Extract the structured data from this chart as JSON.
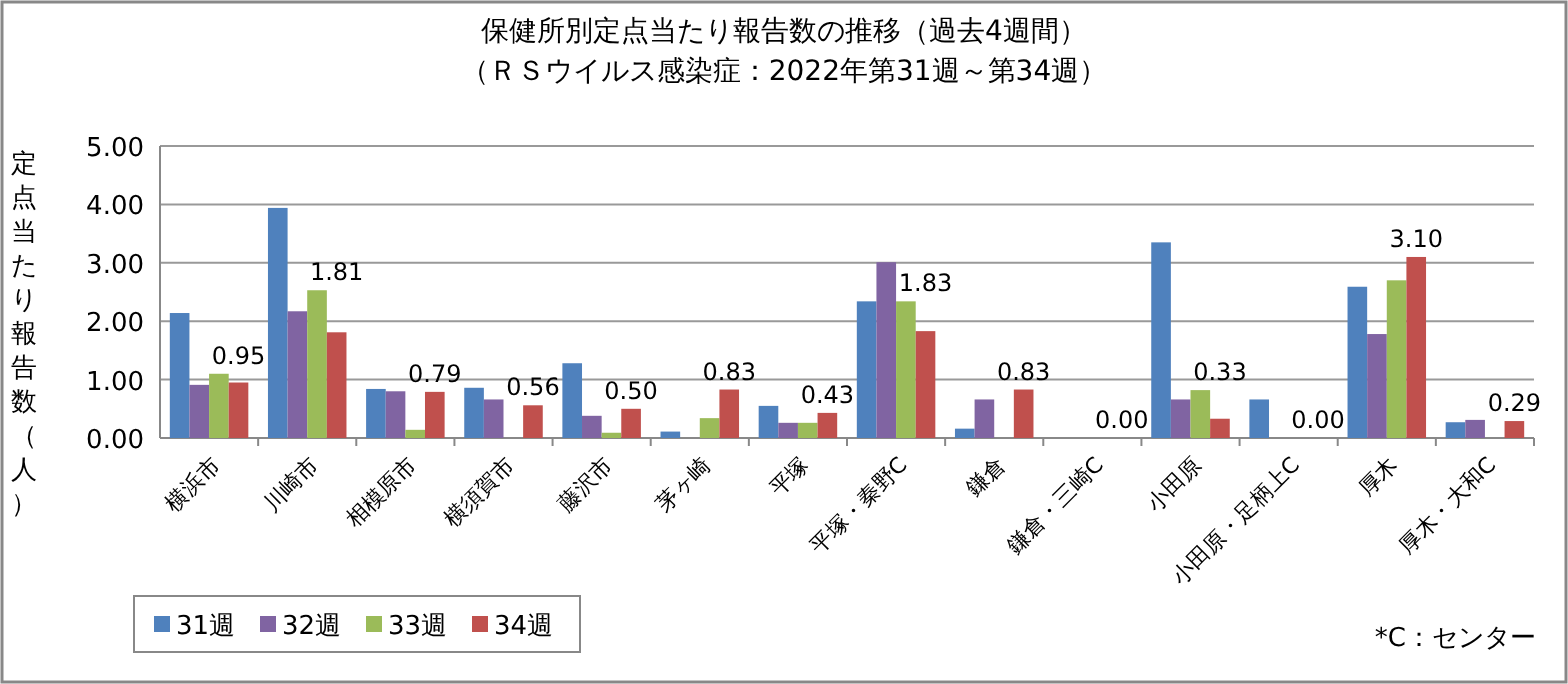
{
  "chart_data": {
    "type": "bar",
    "title": "保健所別定点当たり報告数の推移（過去4週間）",
    "subtitle": "（ＲＳウイルス感染症：2022年第31週～第34週）",
    "ylabel": "定点当たり報告数（人）",
    "categories": [
      "横浜市",
      "川崎市",
      "相模原市",
      "横須賀市",
      "藤沢市",
      "茅ヶ崎",
      "平塚",
      "平塚・秦野C",
      "鎌倉",
      "鎌倉・三崎C",
      "小田原",
      "小田原・足柄上C",
      "厚木",
      "厚木・大和C"
    ],
    "series": [
      {
        "name": "31週",
        "color": "#4f81bd",
        "values": [
          2.14,
          3.94,
          0.84,
          0.86,
          1.28,
          0.11,
          0.55,
          2.34,
          0.16,
          0,
          3.35,
          0.66,
          2.59,
          0.27
        ]
      },
      {
        "name": "32週",
        "color": "#8064a2",
        "values": [
          0.91,
          2.17,
          0.8,
          0.66,
          0.38,
          0,
          0.26,
          3.01,
          0.66,
          0,
          0.66,
          0,
          1.78,
          0.31
        ]
      },
      {
        "name": "33週",
        "color": "#9bbb59",
        "values": [
          1.1,
          2.53,
          0.14,
          0,
          0.09,
          0.34,
          0.26,
          2.34,
          0,
          0,
          0.82,
          0,
          2.7,
          0
        ]
      },
      {
        "name": "34週",
        "color": "#c0504d",
        "values": [
          0.95,
          1.81,
          0.79,
          0.56,
          0.5,
          0.83,
          0.43,
          1.83,
          0.83,
          0,
          0.33,
          0,
          3.1,
          0.29
        ],
        "value_labels": [
          "0.95",
          "1.81",
          "0.79",
          "0.56",
          "0.50",
          "0.83",
          "0.43",
          "1.83",
          "0.83",
          "0.00",
          "0.33",
          "0.00",
          "3.10",
          "0.29"
        ]
      }
    ],
    "ylim": [
      0,
      5
    ],
    "yticks": [
      {
        "value": 0,
        "label": "0.00"
      },
      {
        "value": 1,
        "label": "1.00"
      },
      {
        "value": 2,
        "label": "2.00"
      },
      {
        "value": 3,
        "label": "3.00"
      },
      {
        "value": 4,
        "label": "4.00"
      },
      {
        "value": 5,
        "label": "5.00"
      }
    ],
    "grid": "y",
    "legend": "bottom left",
    "annotations": [
      "*C：センター"
    ]
  }
}
